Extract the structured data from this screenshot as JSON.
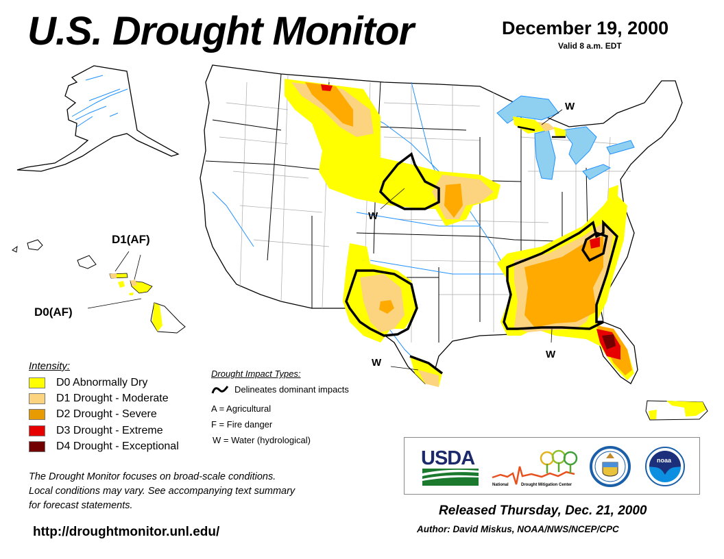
{
  "header": {
    "title": "U.S. Drought Monitor",
    "date": "December 19, 2000",
    "valid": "Valid 8 a.m. EDT"
  },
  "map": {
    "labels": {
      "w_great_lakes": "W",
      "w_plains": "W",
      "w_texas": "W",
      "w_southeast": "W",
      "hawaii_d1": "D1(AF)",
      "hawaii_d0": "D0(AF)"
    },
    "colors": {
      "d0": "#ffff00",
      "d1": "#fcd37f",
      "d2": "#ffaa00",
      "d3": "#e60000",
      "d4": "#730000",
      "water": "#8fd0f0",
      "river": "#1e90ff",
      "county": "#aaaaaa"
    }
  },
  "legend": {
    "intensity_title": "Intensity:",
    "items": [
      {
        "code": "D0",
        "label": "D0 Abnormally Dry",
        "color": "#ffff00"
      },
      {
        "code": "D1",
        "label": "D1 Drought - Moderate",
        "color": "#fcd37f"
      },
      {
        "code": "D2",
        "label": "D2 Drought - Severe",
        "color": "#ffaa00"
      },
      {
        "code": "D3",
        "label": "D3 Drought - Extreme",
        "color": "#e60000"
      },
      {
        "code": "D4",
        "label": "D4 Drought - Exceptional",
        "color": "#730000"
      }
    ]
  },
  "impacts": {
    "title": "Drought Impact Types:",
    "line_label": "Delineates dominant impacts",
    "types": [
      "A = Agricultural",
      "F = Fire danger",
      "W = Water (hydrological)"
    ]
  },
  "footer": {
    "disclaimer": [
      "The Drought Monitor focuses on broad-scale conditions.",
      "Local conditions may vary. See accompanying text summary",
      "for forecast statements."
    ],
    "url": "http://droughtmonitor.unl.edu/",
    "released": "Released Thursday, Dec. 21, 2000",
    "author": "Author: David Miskus, NOAA/NWS/NCEP/CPC"
  },
  "logos": {
    "usda": "USDA",
    "ndmc_left": "National",
    "ndmc_right": "Drought Mitigation Center",
    "noaa": "noaa"
  }
}
